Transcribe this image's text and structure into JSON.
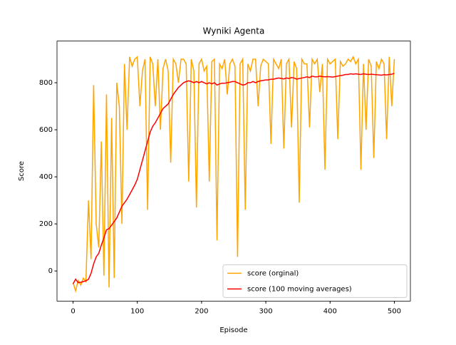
{
  "chart_data": {
    "type": "line",
    "title": "Wyniki Agenta",
    "x_label": "Episode",
    "y_label": "Score",
    "x": [
      0,
      4,
      8,
      12,
      16,
      20,
      24,
      28,
      32,
      36,
      40,
      44,
      48,
      52,
      56,
      60,
      64,
      68,
      72,
      76,
      80,
      84,
      88,
      92,
      96,
      100,
      104,
      108,
      112,
      116,
      120,
      124,
      128,
      132,
      136,
      140,
      144,
      148,
      152,
      156,
      160,
      164,
      168,
      172,
      176,
      180,
      184,
      188,
      192,
      196,
      200,
      204,
      208,
      212,
      216,
      220,
      224,
      228,
      232,
      236,
      240,
      244,
      248,
      252,
      256,
      260,
      264,
      268,
      272,
      276,
      280,
      284,
      288,
      292,
      296,
      300,
      304,
      308,
      312,
      316,
      320,
      324,
      328,
      332,
      336,
      340,
      344,
      348,
      352,
      356,
      360,
      364,
      368,
      372,
      376,
      380,
      384,
      388,
      392,
      396,
      400,
      404,
      408,
      412,
      416,
      420,
      424,
      428,
      432,
      436,
      440,
      444,
      448,
      452,
      456,
      460,
      464,
      468,
      472,
      476,
      480,
      484,
      488,
      492,
      496,
      500
    ],
    "series": [
      {
        "name": "score (orginal)",
        "color": "#ffa500",
        "values": [
          -50,
          -85,
          -40,
          -60,
          -30,
          -45,
          300,
          50,
          790,
          200,
          100,
          550,
          -20,
          750,
          -70,
          650,
          -30,
          800,
          700,
          200,
          880,
          600,
          910,
          870,
          900,
          910,
          700,
          850,
          900,
          260,
          910,
          880,
          700,
          900,
          600,
          860,
          900,
          850,
          460,
          900,
          880,
          800,
          900,
          900,
          880,
          380,
          900,
          850,
          270,
          880,
          900,
          850,
          870,
          380,
          890,
          900,
          130,
          880,
          860,
          900,
          750,
          880,
          900,
          870,
          60,
          880,
          900,
          260,
          880,
          850,
          900,
          900,
          700,
          870,
          900,
          890,
          880,
          540,
          900,
          880,
          860,
          900,
          520,
          880,
          900,
          610,
          890,
          860,
          290,
          900,
          880,
          880,
          610,
          900,
          880,
          900,
          760,
          880,
          430,
          900,
          880,
          890,
          900,
          560,
          890,
          870,
          880,
          900,
          890,
          910,
          880,
          900,
          430,
          880,
          600,
          900,
          870,
          480,
          890,
          860,
          900,
          880,
          560,
          910,
          700,
          900
        ]
      },
      {
        "name": "score (100 moving averages)",
        "color": "#ff0000",
        "values": [
          -55,
          -35,
          -50,
          -48,
          -45,
          -42,
          -35,
          -10,
          30,
          60,
          75,
          110,
          140,
          175,
          180,
          195,
          210,
          225,
          250,
          275,
          290,
          305,
          325,
          345,
          365,
          390,
          430,
          470,
          510,
          550,
          590,
          615,
          630,
          650,
          670,
          690,
          700,
          710,
          730,
          750,
          765,
          780,
          790,
          800,
          805,
          808,
          805,
          800,
          805,
          800,
          805,
          800,
          795,
          800,
          795,
          800,
          790,
          795,
          798,
          798,
          800,
          802,
          805,
          805,
          800,
          795,
          790,
          792,
          800,
          800,
          805,
          800,
          805,
          808,
          810,
          812,
          812,
          815,
          815,
          818,
          820,
          818,
          816,
          820,
          818,
          822,
          820,
          815,
          818,
          820,
          822,
          825,
          822,
          828,
          825,
          825,
          828,
          826,
          825,
          826,
          825,
          824,
          826,
          828,
          830,
          832,
          835,
          835,
          838,
          836,
          838,
          836,
          835,
          838,
          836,
          835,
          836,
          835,
          834,
          833,
          832,
          834,
          833,
          835,
          836,
          840
        ]
      }
    ],
    "xlim": [
      -25,
      525
    ],
    "ylim": [
      -128,
      977
    ],
    "xticks": [
      0,
      100,
      200,
      300,
      400,
      500
    ],
    "yticks": [
      0,
      200,
      400,
      600,
      800
    ],
    "legend": "lower right"
  }
}
